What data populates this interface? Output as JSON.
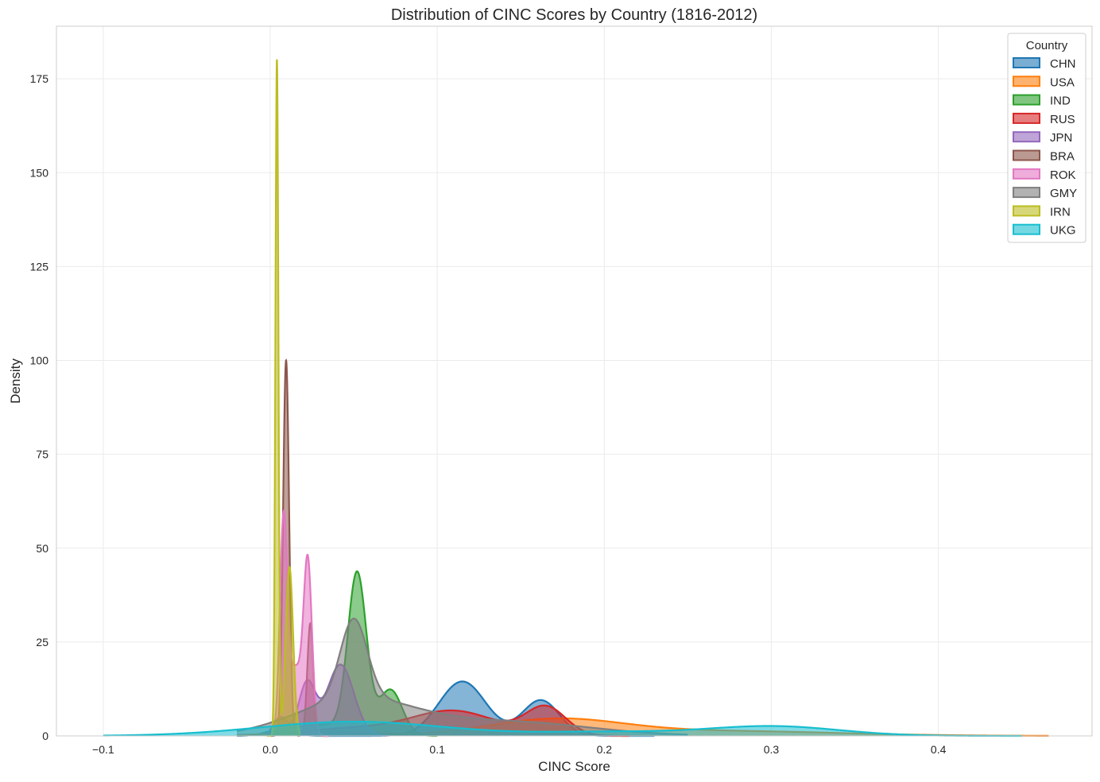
{
  "chart_data": {
    "type": "area",
    "subtype": "kde-density",
    "title": "Distribution of CINC Scores by Country (1816-2012)",
    "xlabel": "CINC Score",
    "ylabel": "Density",
    "xlim": [
      -0.128,
      0.492
    ],
    "ylim": [
      0,
      189
    ],
    "xticks": [
      -0.1,
      0.0,
      0.1,
      0.2,
      0.3,
      0.4
    ],
    "xtick_labels": [
      "−0.1",
      "0.0",
      "0.1",
      "0.2",
      "0.3",
      "0.4"
    ],
    "yticks": [
      0,
      25,
      50,
      75,
      100,
      125,
      150,
      175
    ],
    "yticks_labels": [
      "0",
      "25",
      "50",
      "75",
      "100",
      "125",
      "150",
      "175"
    ],
    "grid": true,
    "legend": {
      "title": "Country",
      "position": "top-right"
    },
    "series": [
      {
        "name": "CHN",
        "color": "#1f77b4",
        "peaks": [
          [
            0.005,
            0.008,
            1.5
          ],
          [
            0.115,
            0.014,
            14.5
          ],
          [
            0.162,
            0.011,
            9.5
          ]
        ],
        "range": [
          -0.02,
          0.23
        ]
      },
      {
        "name": "USA",
        "color": "#ff7f0e",
        "peaks": [
          [
            0.03,
            0.03,
            1.0
          ],
          [
            0.17,
            0.04,
            4.2
          ],
          [
            0.27,
            0.07,
            1.3
          ]
        ],
        "range": [
          -0.02,
          0.466
        ]
      },
      {
        "name": "IND",
        "color": "#2ca02c",
        "peaks": [
          [
            0.052,
            0.0055,
            42
          ],
          [
            0.072,
            0.007,
            12
          ],
          [
            0.03,
            0.02,
            3
          ]
        ],
        "range": [
          0.0,
          0.1
        ]
      },
      {
        "name": "RUS",
        "color": "#d62728",
        "peaks": [
          [
            0.11,
            0.025,
            6.5
          ],
          [
            0.165,
            0.012,
            7.5
          ],
          [
            0.05,
            0.03,
            2
          ]
        ],
        "range": [
          0.0,
          0.215
        ]
      },
      {
        "name": "JPN",
        "color": "#9467bd",
        "peaks": [
          [
            0.022,
            0.005,
            14
          ],
          [
            0.042,
            0.008,
            19
          ],
          [
            0.006,
            0.004,
            5
          ]
        ],
        "range": [
          -0.002,
          0.07
        ]
      },
      {
        "name": "BRA",
        "color": "#8c564b",
        "peaks": [
          [
            0.0095,
            0.0018,
            100
          ],
          [
            0.024,
            0.0018,
            30
          ]
        ],
        "range": [
          0.0,
          0.035
        ]
      },
      {
        "name": "ROK",
        "color": "#e377c2",
        "peaks": [
          [
            0.008,
            0.0022,
            56
          ],
          [
            0.0225,
            0.0025,
            45
          ],
          [
            0.015,
            0.004,
            18
          ]
        ],
        "range": [
          0.0,
          0.035
        ]
      },
      {
        "name": "GMY",
        "color": "#7f7f7f",
        "peaks": [
          [
            0.05,
            0.008,
            21
          ],
          [
            0.05,
            0.035,
            9.5
          ],
          [
            0.14,
            0.05,
            3.8
          ]
        ],
        "range": [
          -0.02,
          0.25
        ]
      },
      {
        "name": "IRN",
        "color": "#bcbd22",
        "peaks": [
          [
            0.004,
            0.0009,
            180
          ],
          [
            0.0115,
            0.0022,
            45
          ]
        ],
        "range": [
          -0.002,
          0.018
        ]
      },
      {
        "name": "UKG",
        "color": "#17becf",
        "peaks": [
          [
            0.05,
            0.055,
            3.8
          ],
          [
            0.3,
            0.04,
            2.6
          ],
          [
            0.2,
            0.04,
            1.0
          ]
        ],
        "range": [
          -0.1,
          0.45
        ]
      }
    ]
  }
}
